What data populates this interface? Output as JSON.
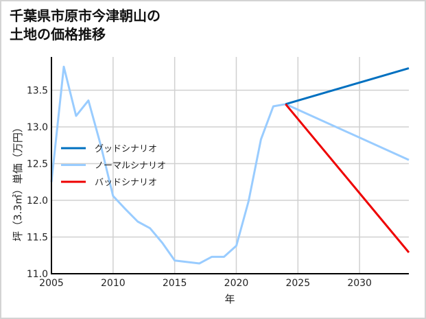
{
  "title_line1": "千葉県市原市今津朝山の",
  "title_line2": "土地の価格推移",
  "chart_data": {
    "type": "line",
    "title": "千葉県市原市今津朝山の土地の価格推移",
    "xlabel": "年",
    "ylabel": "坪（3.3㎡）単価（万円）",
    "xlim": [
      2005,
      2034
    ],
    "ylim": [
      11.0,
      13.95
    ],
    "xticks": [
      2005,
      2010,
      2015,
      2020,
      2025,
      2030
    ],
    "xtick_labels": [
      "2005",
      "2010",
      "2015",
      "2020",
      "2025",
      "2030"
    ],
    "yticks": [
      11.0,
      11.5,
      12.0,
      12.5,
      13.0,
      13.5
    ],
    "ytick_labels": [
      "11.0",
      "11.5",
      "12.0",
      "12.5",
      "13.0",
      "13.5"
    ],
    "grid": true,
    "legend_position": "center left",
    "series": [
      {
        "name": "グッドシナリオ",
        "color": "#0070c0",
        "x": [
          2024,
          2034
        ],
        "values": [
          13.31,
          13.8
        ]
      },
      {
        "name": "ノーマルシナリオ",
        "color": "#99ccff",
        "x": [
          2005,
          2006,
          2007,
          2008,
          2009,
          2010,
          2011,
          2012,
          2013,
          2014,
          2015,
          2016,
          2017,
          2018,
          2019,
          2020,
          2021,
          2022,
          2023,
          2024,
          2034
        ],
        "values": [
          12.25,
          13.82,
          13.15,
          13.36,
          12.75,
          12.06,
          11.88,
          11.71,
          11.62,
          11.42,
          11.18,
          11.16,
          11.14,
          11.23,
          11.23,
          11.38,
          11.99,
          12.83,
          13.28,
          13.31,
          12.55
        ]
      },
      {
        "name": "バッドシナリオ",
        "color": "#ee0000",
        "x": [
          2024,
          2034
        ],
        "values": [
          13.31,
          11.29
        ]
      }
    ]
  }
}
